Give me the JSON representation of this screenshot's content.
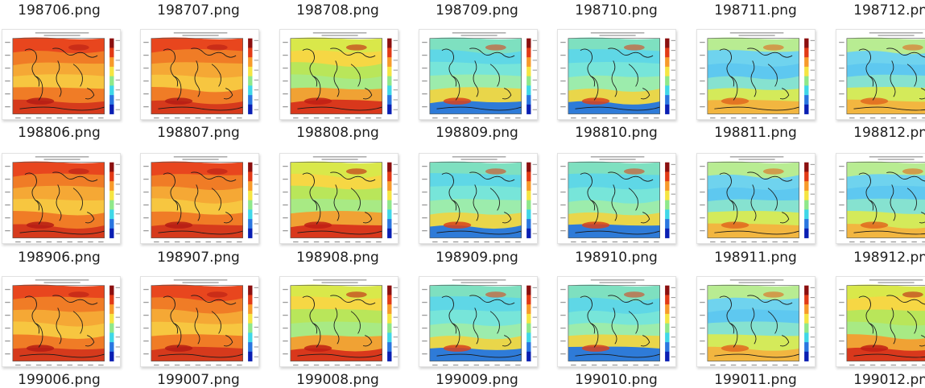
{
  "explorer": {
    "rows": [
      {
        "files": [
          {
            "name": "198706.png",
            "palette": "warm"
          },
          {
            "name": "198707.png",
            "palette": "warm"
          },
          {
            "name": "198708.png",
            "palette": "mixed"
          },
          {
            "name": "198709.png",
            "palette": "cool"
          },
          {
            "name": "198710.png",
            "palette": "cool"
          },
          {
            "name": "198711.png",
            "palette": "cold"
          },
          {
            "name": "198712.png",
            "palette": "cold"
          }
        ]
      },
      {
        "files": [
          {
            "name": "198806.png",
            "palette": "warm"
          },
          {
            "name": "198807.png",
            "palette": "warm"
          },
          {
            "name": "198808.png",
            "palette": "mixed"
          },
          {
            "name": "198809.png",
            "palette": "cool"
          },
          {
            "name": "198810.png",
            "palette": "cool"
          },
          {
            "name": "198811.png",
            "palette": "cold"
          },
          {
            "name": "198812.png",
            "palette": "cold"
          }
        ]
      },
      {
        "files": [
          {
            "name": "198906.png",
            "palette": "warm"
          },
          {
            "name": "198907.png",
            "palette": "warm"
          },
          {
            "name": "198908.png",
            "palette": "mixed"
          },
          {
            "name": "198909.png",
            "palette": "cool"
          },
          {
            "name": "198910.png",
            "palette": "cool"
          },
          {
            "name": "198911.png",
            "palette": "cold"
          },
          {
            "name": "198912.png",
            "palette": "mixed"
          }
        ]
      },
      {
        "files": [
          {
            "name": "199006.png"
          },
          {
            "name": "199007.png"
          },
          {
            "name": "199008.png"
          },
          {
            "name": "199009.png"
          },
          {
            "name": "199010.png"
          },
          {
            "name": "199011.png"
          },
          {
            "name": "199012.png"
          }
        ]
      }
    ],
    "palettes": {
      "warm": {
        "bands": [
          "#e8461e",
          "#f07c26",
          "#f5a835",
          "#f7c640",
          "#f07c26",
          "#d63a1c"
        ],
        "blob": "#b51c14"
      },
      "mixed": {
        "bands": [
          "#d9e84a",
          "#f6d744",
          "#b9e65a",
          "#a8ea84",
          "#f0a234",
          "#d9381c"
        ],
        "blob": "#c01e14"
      },
      "cool": {
        "bands": [
          "#7ee0c0",
          "#5fd7e6",
          "#77e5d9",
          "#9cecac",
          "#e9d64a",
          "#2e7bd8"
        ],
        "blob": "#d8421c"
      },
      "cold": {
        "bands": [
          "#b8ec92",
          "#6fd3ee",
          "#5ec8f0",
          "#86e2d0",
          "#d4ea5a",
          "#f2b640"
        ],
        "blob": "#e0681e"
      },
      "colorbar": [
        "#8b0f0f",
        "#e23a16",
        "#f79a2a",
        "#f5e542",
        "#8fe88a",
        "#3fd7e8",
        "#2a76e0",
        "#0a1fb3"
      ],
      "coastline": "#1a1a1a"
    }
  }
}
